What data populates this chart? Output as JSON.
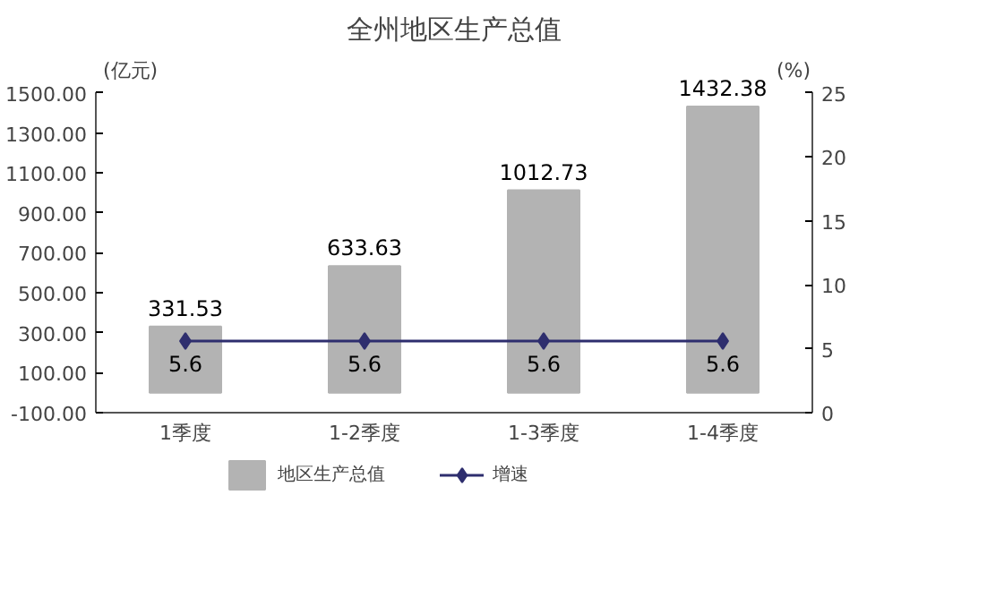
{
  "chart_data": {
    "type": "bar",
    "title": "全州地区生产总值",
    "ylabel": "(亿元)",
    "y2label": "(%)",
    "categories": [
      "1季度",
      "1-2季度",
      "1-3季度",
      "1-4季度"
    ],
    "series": [
      {
        "name": "地区生产总值",
        "color": "#b3b3b3",
        "values": [
          331.53,
          633.63,
          1012.73,
          1432.38
        ]
      },
      {
        "name": "增速",
        "type": "line",
        "color": "#2e2e6e",
        "axis": "y2",
        "marker": "diamond",
        "values": [
          5.6,
          5.6,
          5.6,
          5.6
        ]
      }
    ],
    "ylim": [
      -100,
      1500
    ],
    "yticks": [
      {
        "value": -100,
        "label": "-100.00"
      },
      {
        "value": 100,
        "label": "100.00"
      },
      {
        "value": 300,
        "label": "300.00"
      },
      {
        "value": 500,
        "label": "500.00"
      },
      {
        "value": 700,
        "label": "700.00"
      },
      {
        "value": 900,
        "label": "900.00"
      },
      {
        "value": 1100,
        "label": "1100.00"
      },
      {
        "value": 1300,
        "label": "1300.00"
      },
      {
        "value": 1500,
        "label": "1500.00"
      }
    ],
    "y2lim": [
      0,
      25
    ],
    "y2ticks": [
      0,
      5,
      10,
      15,
      20,
      25
    ],
    "data_labels": true,
    "grid": false,
    "legend": "bottom"
  }
}
